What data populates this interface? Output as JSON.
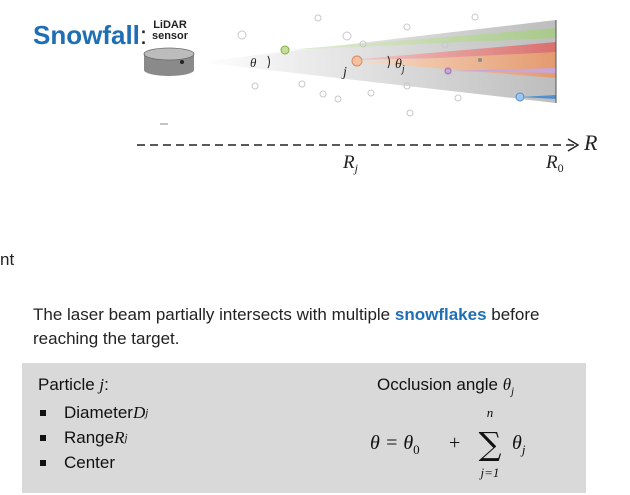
{
  "title": "Snowfall",
  "title_colon": ":",
  "sensor_label_line1": "LiDAR",
  "sensor_label_line2": "sensor",
  "diagram": {
    "theta": "θ",
    "particle_j": "j",
    "theta_j": "θ",
    "theta_j_sub": "j",
    "axis_label": "R",
    "range_label": "R",
    "range_label_sub": "j",
    "range0_label": "R",
    "range0_label_sub": "0"
  },
  "left_edge_text": "nt",
  "sentence": {
    "before": "The laser beam partially intersects with multiple ",
    "highlight": "snowflakes",
    "after": " before reaching the target."
  },
  "box": {
    "particle_heading": "Particle ",
    "particle_heading_var": "j",
    "particle_heading_colon": ":",
    "items": [
      {
        "label": "Diameter ",
        "var": "D",
        "sub": "j"
      },
      {
        "label": "Range ",
        "var": "R",
        "sub": "j"
      },
      {
        "label": "Center",
        "var": "",
        "sub": ""
      }
    ],
    "occlusion_heading": "Occlusion angle ",
    "occlusion_var": "θ",
    "occlusion_sub": "j",
    "formula": {
      "lhs": "θ = θ",
      "lhs_sub": "0",
      "plus": "+",
      "sum_top": "n",
      "sum_bottom": "j=1",
      "term": "θ",
      "term_sub": "j"
    }
  },
  "colors": {
    "title": "#1f6fb5",
    "highlight": "#1f6fb5",
    "beam_green": "#a9c98a",
    "beam_red": "#d9706e",
    "beam_orange": "#e9a77c",
    "beam_purple": "#c9a6d8",
    "beam_blue": "#4f8fd0",
    "box_bg": "#d9d9d9"
  }
}
